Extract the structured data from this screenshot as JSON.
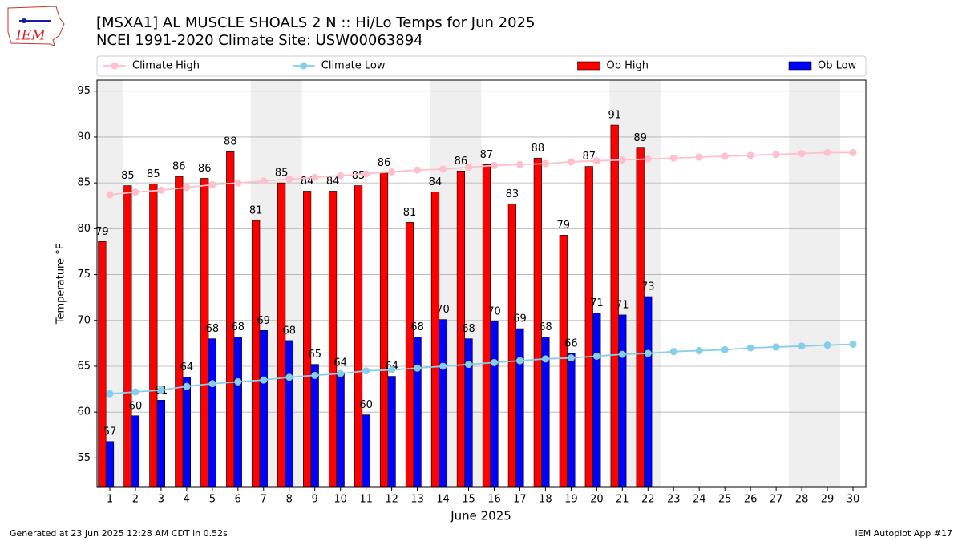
{
  "chart_data": {
    "type": "bar",
    "title": "[MSXA1] AL MUSCLE SHOALS 2 N :: Hi/Lo Temps for Jun 2025",
    "subtitle": "NCEI 1991-2020 Climate Site: USW00063894",
    "xlabel": "June 2025",
    "ylabel": "Temperature °F",
    "logo_text": "IEM",
    "footer_left": "Generated at 23 Jun 2025 12:28 AM CDT in 0.52s",
    "footer_right": "IEM Autoplot App #17",
    "x": [
      1,
      2,
      3,
      4,
      5,
      6,
      7,
      8,
      9,
      10,
      11,
      12,
      13,
      14,
      15,
      16,
      17,
      18,
      19,
      20,
      21,
      22,
      23,
      24,
      25,
      26,
      27,
      28,
      29,
      30
    ],
    "xlim": [
      0.5,
      30.5
    ],
    "xticks": [
      1,
      2,
      3,
      4,
      5,
      6,
      7,
      8,
      9,
      10,
      11,
      12,
      13,
      14,
      15,
      16,
      17,
      18,
      19,
      20,
      21,
      22,
      23,
      24,
      25,
      26,
      27,
      28,
      29,
      30
    ],
    "ylim": [
      51.8,
      96.2
    ],
    "yticks": [
      55,
      60,
      65,
      70,
      75,
      80,
      85,
      90,
      95
    ],
    "grid": true,
    "legend": "top",
    "shaded_x": [
      [
        0.5,
        1.5
      ],
      [
        6.5,
        8.5
      ],
      [
        13.5,
        15.5
      ],
      [
        20.5,
        22.5
      ],
      [
        27.5,
        29.5
      ]
    ],
    "shade_color": "#efefef",
    "series": [
      {
        "name": "Climate High",
        "kind": "line",
        "color": "#ffc0cb",
        "values": [
          83.7,
          84.0,
          84.2,
          84.5,
          84.8,
          85.0,
          85.2,
          85.4,
          85.6,
          85.8,
          86.0,
          86.2,
          86.4,
          86.5,
          86.7,
          86.9,
          87.0,
          87.1,
          87.3,
          87.4,
          87.5,
          87.6,
          87.7,
          87.8,
          87.9,
          88.0,
          88.1,
          88.2,
          88.3,
          88.3
        ]
      },
      {
        "name": "Climate Low",
        "kind": "line",
        "color": "#87ceeb",
        "values": [
          62.0,
          62.2,
          62.4,
          62.8,
          63.1,
          63.3,
          63.5,
          63.8,
          64.0,
          64.2,
          64.5,
          64.6,
          64.8,
          65.0,
          65.2,
          65.4,
          65.6,
          65.8,
          65.9,
          66.1,
          66.3,
          66.4,
          66.6,
          66.7,
          66.8,
          67.0,
          67.1,
          67.2,
          67.3,
          67.4
        ]
      },
      {
        "name": "Ob High",
        "kind": "bar",
        "offset": [
          -0.45,
          -0.15
        ],
        "color": "#ff0000",
        "values": [
          78.6,
          84.7,
          84.9,
          85.7,
          85.5,
          88.4,
          80.9,
          85.0,
          84.1,
          84.1,
          84.7,
          86.1,
          80.7,
          84.0,
          86.3,
          87.0,
          82.7,
          87.7,
          79.3,
          86.8,
          91.3,
          88.8,
          null,
          null,
          null,
          null,
          null,
          null,
          null,
          null
        ],
        "value_labels": [
          "79",
          "85",
          "85",
          "86",
          "86",
          "88",
          "81",
          "85",
          "84",
          "84",
          "85",
          "86",
          "81",
          "84",
          "86",
          "87",
          "83",
          "88",
          "79",
          "87",
          "91",
          "89",
          null,
          null,
          null,
          null,
          null,
          null,
          null,
          null
        ]
      },
      {
        "name": "Ob Low",
        "kind": "bar",
        "offset": [
          -0.15,
          0.15
        ],
        "color": "#0000ff",
        "values": [
          56.8,
          59.6,
          61.3,
          63.8,
          68.0,
          68.2,
          68.9,
          67.8,
          65.2,
          64.3,
          59.7,
          63.9,
          68.2,
          70.1,
          68.0,
          69.9,
          69.1,
          68.2,
          66.4,
          70.8,
          70.6,
          72.6,
          null,
          null,
          null,
          null,
          null,
          null,
          null,
          null
        ],
        "value_labels": [
          "57",
          "60",
          "61",
          "64",
          "68",
          "68",
          "69",
          "68",
          "65",
          "64",
          "60",
          "64",
          "68",
          "70",
          "68",
          "70",
          "69",
          "68",
          "66",
          "71",
          "71",
          "73",
          null,
          null,
          null,
          null,
          null,
          null,
          null,
          null
        ]
      }
    ]
  }
}
